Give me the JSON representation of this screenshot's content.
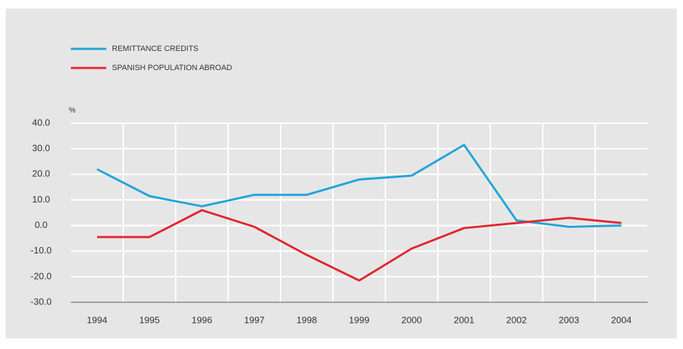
{
  "chart_data": {
    "type": "line",
    "ylabel": "%",
    "categories": [
      "1994",
      "1995",
      "1996",
      "1997",
      "1998",
      "1999",
      "2000",
      "2001",
      "2002",
      "2003",
      "2004"
    ],
    "series": [
      {
        "name": "REMITTANCE CREDITS",
        "color": "#1fa5d8",
        "values": [
          22,
          11.5,
          7.5,
          12,
          12,
          18,
          19.5,
          31.5,
          2,
          -0.5,
          0
        ]
      },
      {
        "name": "SPANISH POPULATION ABROAD",
        "color": "#e1262d",
        "values": [
          -4.5,
          -4.5,
          6,
          -0.5,
          -11.5,
          -21.5,
          -9,
          -1,
          1,
          3,
          1
        ]
      }
    ],
    "ylim": [
      -30,
      40
    ],
    "yticks": [
      {
        "value": -30,
        "label": "-30.0"
      },
      {
        "value": -20,
        "label": "-20.0"
      },
      {
        "value": -10,
        "label": "-10.0"
      },
      {
        "value": 0,
        "label": "0.0"
      },
      {
        "value": 10,
        "label": "10.0"
      },
      {
        "value": 20,
        "label": "20.0"
      },
      {
        "value": 30,
        "label": "30.0"
      },
      {
        "value": 40,
        "label": "40.0"
      }
    ],
    "grid": true
  }
}
